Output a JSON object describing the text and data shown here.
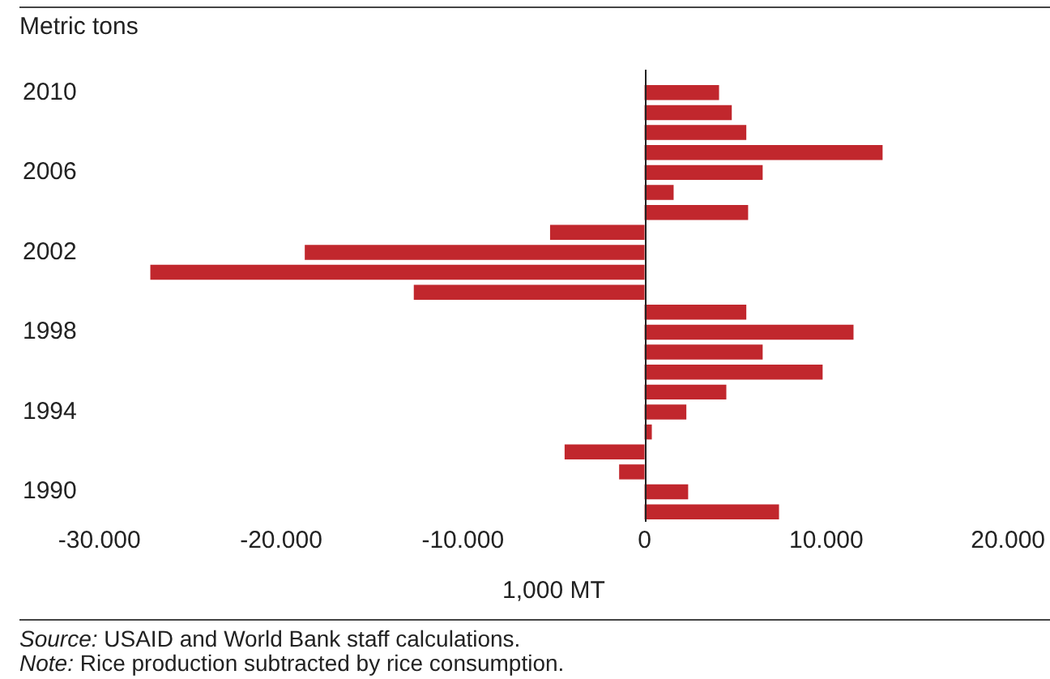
{
  "chart_data": {
    "type": "bar",
    "orientation": "horizontal",
    "ylabel": "Metric tons",
    "xlabel": "1,000 MT",
    "categories": [
      "2010",
      null,
      null,
      null,
      "2006",
      null,
      null,
      null,
      "2002",
      null,
      null,
      null,
      "1998",
      null,
      null,
      null,
      "1994",
      null,
      null,
      null,
      "1990",
      null
    ],
    "values": [
      4100,
      4800,
      5600,
      13100,
      6500,
      1600,
      5700,
      -5200,
      -18700,
      -27200,
      -12700,
      5600,
      11500,
      6500,
      9800,
      4500,
      2300,
      400,
      -4400,
      -1400,
      2400,
      7400
    ],
    "color": "#c1272d",
    "xlim": [
      -30000,
      20000
    ],
    "xticks": [
      {
        "value": -30000,
        "label": "-30.000"
      },
      {
        "value": -20000,
        "label": "-20.000"
      },
      {
        "value": -10000,
        "label": "-10.000"
      },
      0,
      {
        "value": 10000,
        "label": "10.000"
      },
      {
        "value": 20000,
        "label": "20.000"
      }
    ],
    "grid": false,
    "legend": false,
    "ref_lines": [
      {
        "axis": "x",
        "value": 0,
        "color": "#222222"
      }
    ],
    "annotations": [
      "Source: USAID and World Bank staff calculations.",
      "Note: Rice production subtracted by rice consumption."
    ]
  }
}
